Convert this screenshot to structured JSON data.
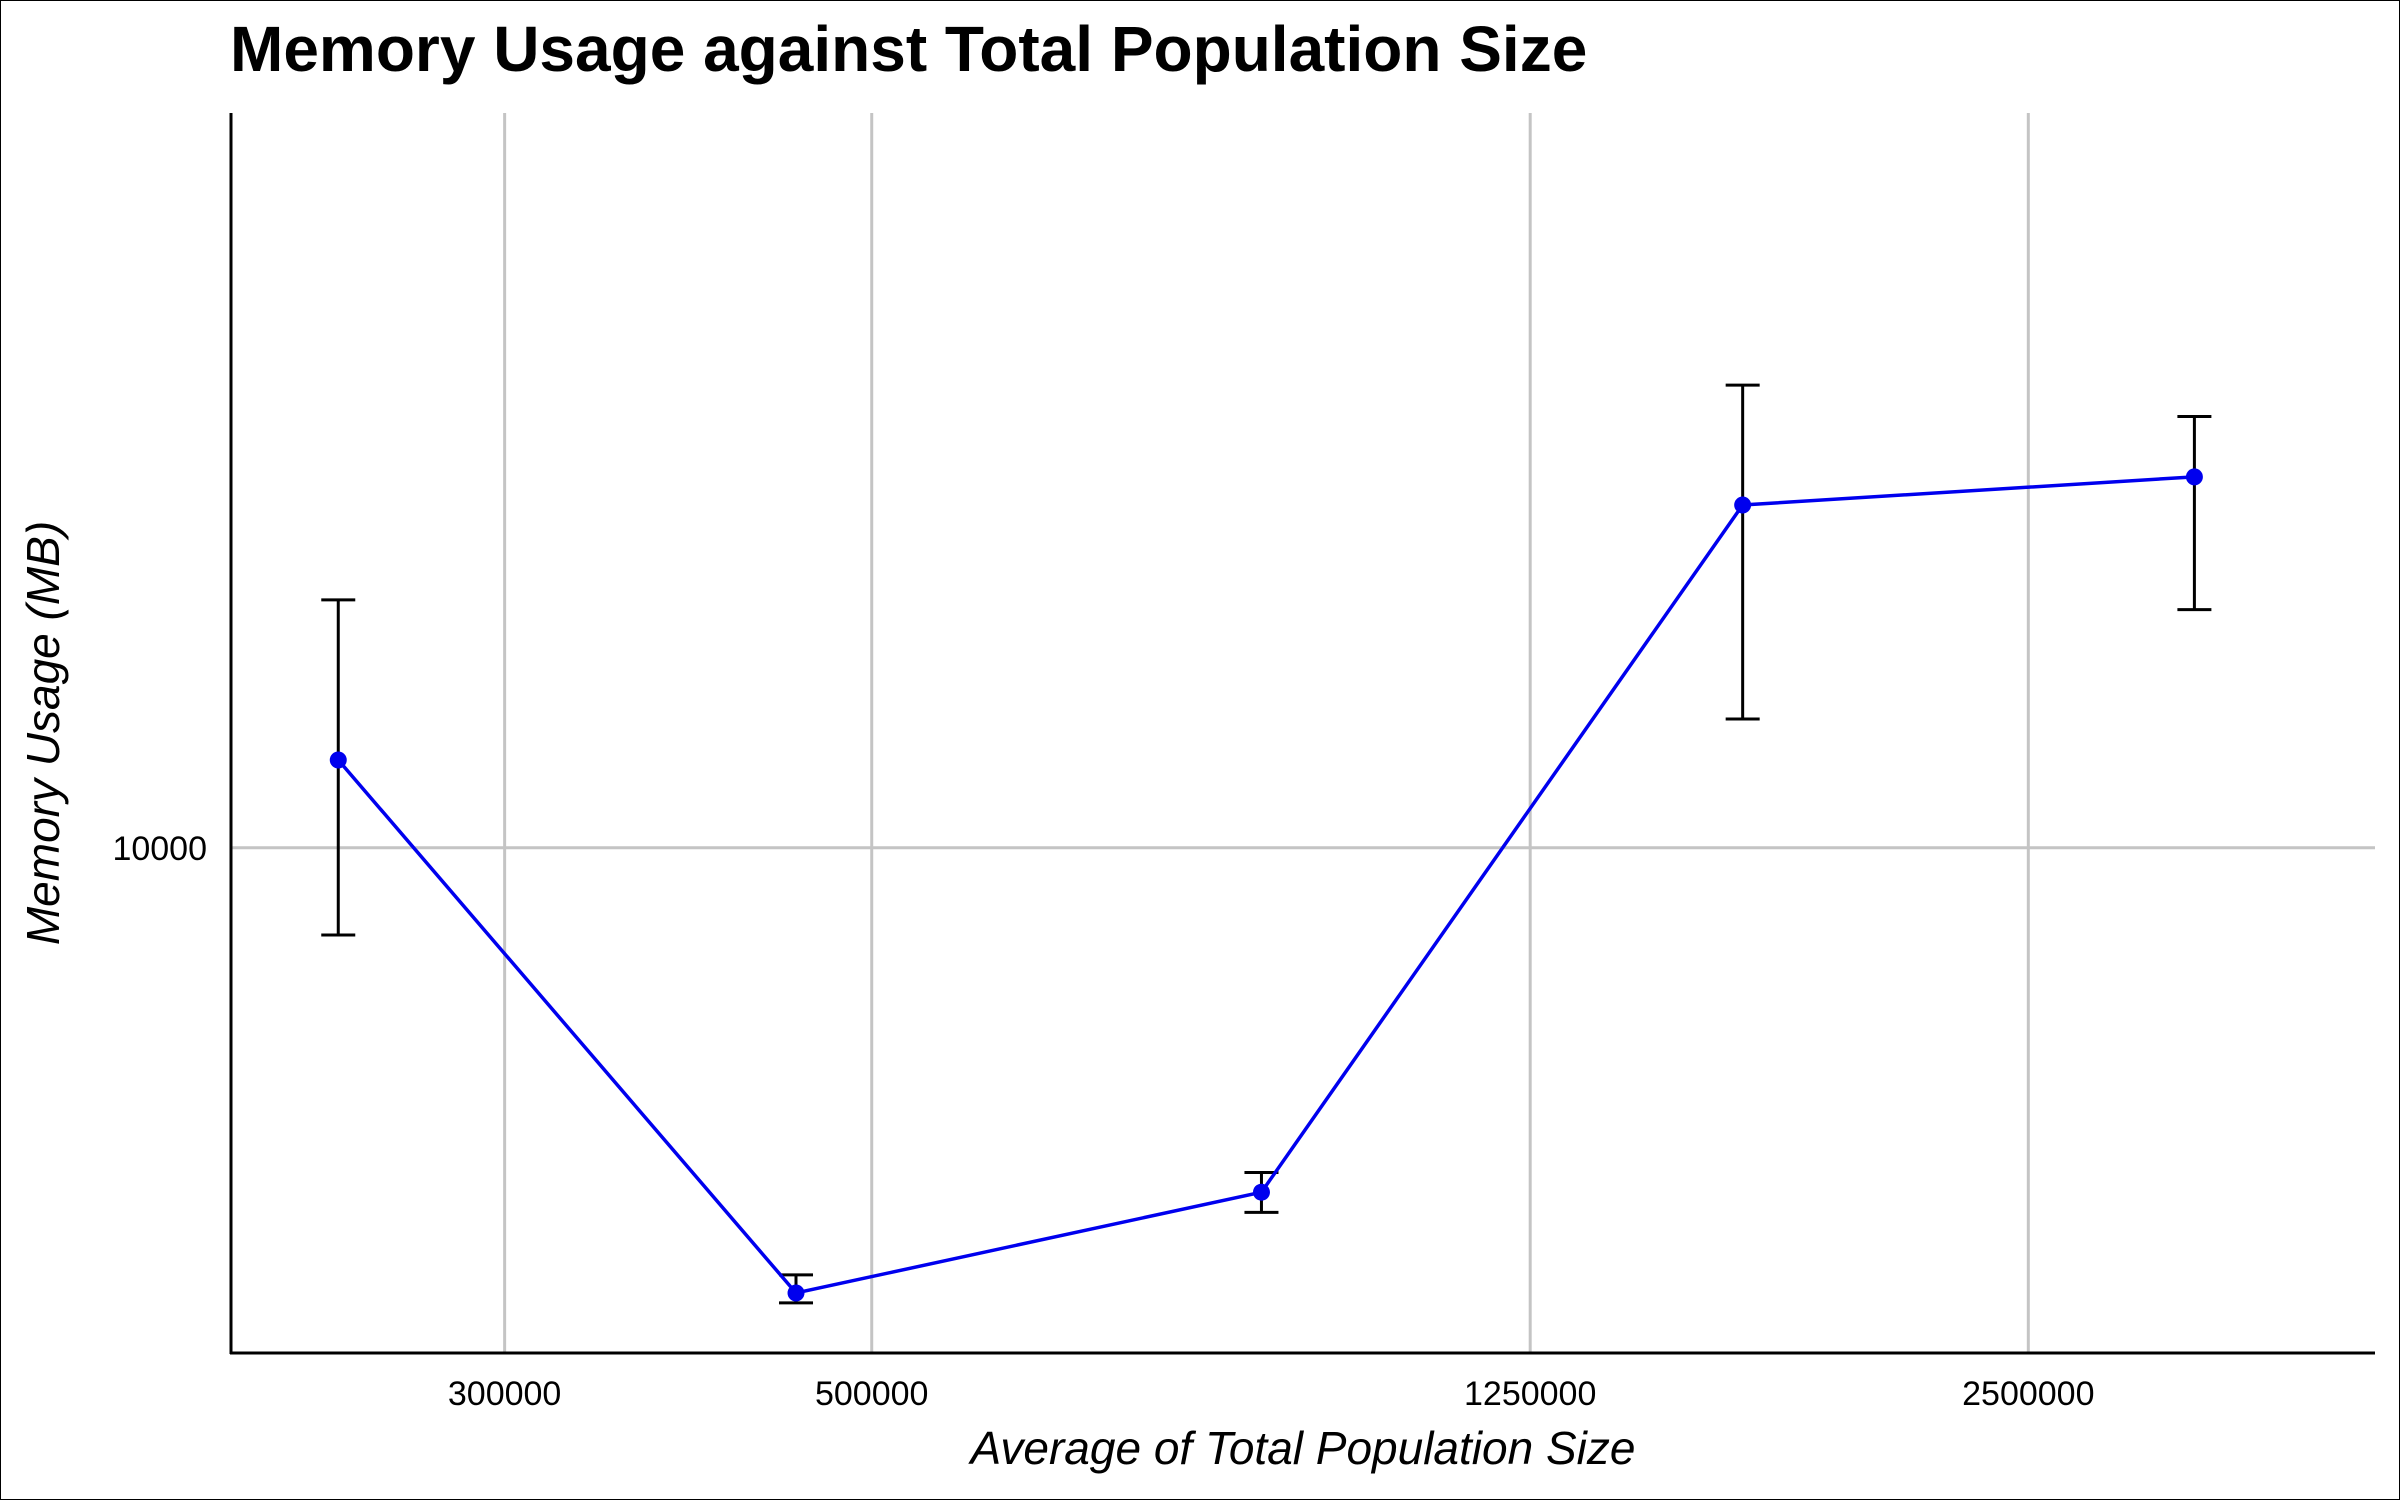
{
  "chart_data": {
    "type": "line",
    "title": "Memory Usage against Total Population Size",
    "xlabel": "Average of Total Population Size",
    "ylabel": "Memory Usage (MB)",
    "x_scale": "log",
    "y_scale": "log",
    "xlim": [
      205000,
      4050000
    ],
    "ylim": [
      5400,
      24500
    ],
    "x_ticks": [
      300000,
      500000,
      1250000,
      2500000
    ],
    "x_tick_labels": [
      "300000",
      "500000",
      "1250000",
      "2500000"
    ],
    "y_ticks": [
      10000
    ],
    "y_tick_labels": [
      "10000"
    ],
    "grid": true,
    "legend": "none",
    "colors": {
      "line": "#0000ee",
      "point": "#0000ee",
      "error_bar": "#000000",
      "grid": "#c4c4c4",
      "axis": "#000000"
    },
    "series": [
      {
        "x": [
          238000,
          450000,
          860000,
          1680000,
          3150000
        ],
        "y": [
          11130,
          5810,
          6570,
          15190,
          15720
        ],
        "y_low": [
          8990,
          5740,
          6410,
          11700,
          13370
        ],
        "y_high": [
          13530,
          5940,
          6730,
          17580,
          16920
        ]
      }
    ]
  }
}
